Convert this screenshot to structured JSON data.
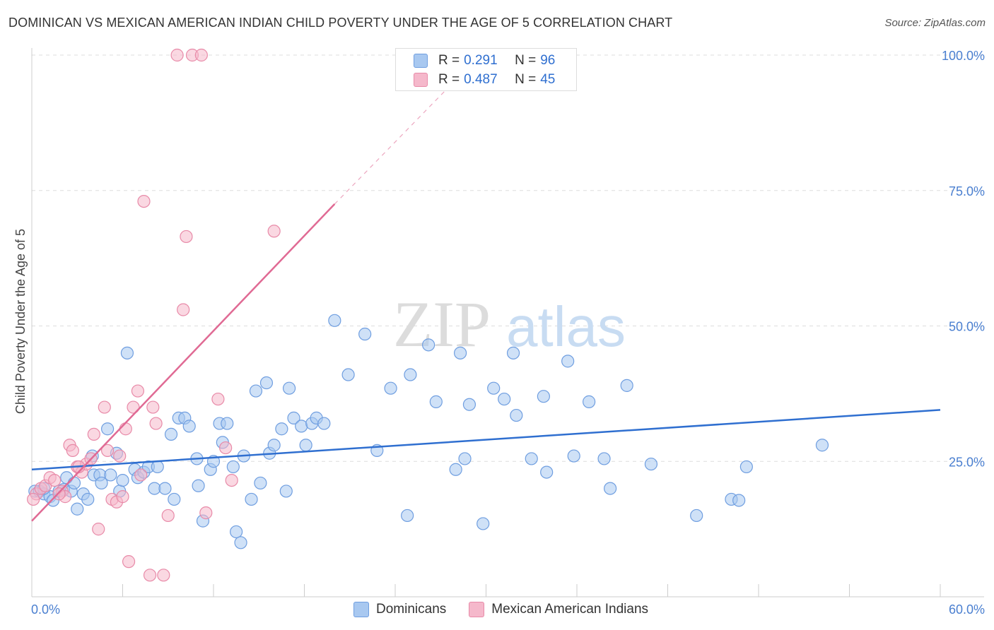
{
  "title": "DOMINICAN VS MEXICAN AMERICAN INDIAN CHILD POVERTY UNDER THE AGE OF 5 CORRELATION CHART",
  "source": "Source: ZipAtlas.com",
  "watermark": {
    "zip": "ZIP",
    "atlas": "atlas"
  },
  "colors": {
    "blue_fill": "#a8c8f0",
    "blue_stroke": "#6f9ee0",
    "blue_line": "#2f6fd0",
    "pink_fill": "#f5b8cb",
    "pink_stroke": "#e88aa8",
    "pink_line": "#e06a94",
    "grid": "#dddddd",
    "tick_text": "#4a7fd0"
  },
  "legend_top": [
    {
      "r_label": "R =",
      "r_value": "0.291",
      "n_label": "N =",
      "n_value": "96"
    },
    {
      "r_label": "R =",
      "r_value": "0.487",
      "n_label": "N =",
      "n_value": "45"
    }
  ],
  "legend_bottom": [
    "Dominicans",
    "Mexican American Indians"
  ],
  "chart_data": {
    "type": "scatter",
    "title": "DOMINICAN VS MEXICAN AMERICAN INDIAN CHILD POVERTY UNDER THE AGE OF 5 CORRELATION CHART",
    "xlabel": "",
    "ylabel": "Child Poverty Under the Age of 5",
    "xlim": [
      0,
      60
    ],
    "ylim": [
      0,
      100
    ],
    "x_tick_labels": [
      "0.0%",
      "60.0%"
    ],
    "y_tick_labels": [
      "25.0%",
      "50.0%",
      "75.0%",
      "100.0%"
    ],
    "y_ticks": [
      25,
      50,
      75,
      100
    ],
    "grid": true,
    "legend_position": "top-center",
    "series": [
      {
        "name": "Dominicans",
        "color": "#a8c8f0",
        "trendline": {
          "x": [
            0,
            60
          ],
          "y": [
            23.5,
            34.5
          ]
        },
        "points": [
          [
            0.2,
            19.5
          ],
          [
            0.5,
            19.5
          ],
          [
            0.8,
            19.0
          ],
          [
            1.2,
            18.5
          ],
          [
            1.4,
            17.8
          ],
          [
            1.8,
            19.5
          ],
          [
            2.1,
            19.8
          ],
          [
            2.3,
            22.0
          ],
          [
            2.6,
            19.5
          ],
          [
            2.8,
            21.0
          ],
          [
            3.0,
            16.2
          ],
          [
            3.4,
            19.0
          ],
          [
            3.7,
            18.0
          ],
          [
            4.0,
            26.0
          ],
          [
            4.1,
            22.5
          ],
          [
            4.5,
            22.5
          ],
          [
            4.6,
            21.0
          ],
          [
            5.0,
            31.0
          ],
          [
            5.2,
            22.5
          ],
          [
            5.6,
            26.5
          ],
          [
            5.8,
            19.5
          ],
          [
            6.0,
            21.5
          ],
          [
            6.3,
            45.0
          ],
          [
            6.8,
            23.5
          ],
          [
            7.0,
            22.0
          ],
          [
            7.4,
            23.0
          ],
          [
            7.7,
            24.0
          ],
          [
            8.1,
            20.0
          ],
          [
            8.3,
            24.0
          ],
          [
            8.8,
            20.0
          ],
          [
            9.2,
            30.0
          ],
          [
            9.4,
            18.0
          ],
          [
            9.7,
            33.0
          ],
          [
            10.1,
            33.0
          ],
          [
            10.4,
            31.5
          ],
          [
            10.9,
            25.5
          ],
          [
            11.0,
            20.5
          ],
          [
            11.3,
            14.0
          ],
          [
            11.8,
            23.5
          ],
          [
            12.0,
            25.0
          ],
          [
            12.4,
            32.0
          ],
          [
            12.6,
            28.5
          ],
          [
            12.9,
            32.0
          ],
          [
            13.3,
            24.0
          ],
          [
            13.5,
            12.0
          ],
          [
            13.8,
            10.0
          ],
          [
            14.0,
            26.0
          ],
          [
            14.5,
            18.0
          ],
          [
            14.8,
            38.0
          ],
          [
            15.1,
            21.0
          ],
          [
            15.5,
            39.5
          ],
          [
            15.7,
            26.5
          ],
          [
            16.0,
            28.0
          ],
          [
            16.5,
            31.0
          ],
          [
            16.8,
            19.5
          ],
          [
            17.0,
            38.5
          ],
          [
            17.3,
            33.0
          ],
          [
            17.8,
            31.5
          ],
          [
            18.1,
            28.0
          ],
          [
            18.5,
            32.0
          ],
          [
            18.8,
            33.0
          ],
          [
            19.3,
            32.0
          ],
          [
            20.0,
            51.0
          ],
          [
            20.9,
            41.0
          ],
          [
            22.0,
            48.5
          ],
          [
            22.8,
            27.0
          ],
          [
            23.7,
            38.5
          ],
          [
            24.8,
            15.0
          ],
          [
            25.0,
            41.0
          ],
          [
            26.2,
            46.5
          ],
          [
            26.7,
            36.0
          ],
          [
            28.0,
            23.5
          ],
          [
            28.3,
            45.0
          ],
          [
            28.6,
            25.5
          ],
          [
            28.9,
            35.5
          ],
          [
            29.8,
            13.5
          ],
          [
            30.5,
            38.5
          ],
          [
            31.2,
            36.5
          ],
          [
            31.8,
            45.0
          ],
          [
            32.0,
            33.5
          ],
          [
            33.0,
            25.5
          ],
          [
            33.8,
            37.0
          ],
          [
            34.0,
            23.0
          ],
          [
            35.4,
            43.5
          ],
          [
            35.8,
            26.0
          ],
          [
            36.8,
            36.0
          ],
          [
            37.8,
            25.5
          ],
          [
            38.2,
            20.0
          ],
          [
            39.3,
            39.0
          ],
          [
            40.9,
            24.5
          ],
          [
            43.9,
            15.0
          ],
          [
            46.2,
            18.0
          ],
          [
            46.7,
            17.8
          ],
          [
            47.2,
            24.0
          ],
          [
            52.2,
            28.0
          ],
          [
            0.8,
            20.0
          ]
        ]
      },
      {
        "name": "Mexican American Indians",
        "color": "#f5b8cb",
        "trendline": {
          "x": [
            0,
            20
          ],
          "y": [
            14.0,
            72.5
          ]
        },
        "trendline_extension": {
          "x": [
            20,
            27.5
          ],
          "y": [
            72.5,
            94.0
          ]
        },
        "points": [
          [
            0.3,
            19.0
          ],
          [
            0.6,
            20.0
          ],
          [
            0.9,
            20.5
          ],
          [
            1.2,
            22.0
          ],
          [
            1.5,
            21.5
          ],
          [
            2.0,
            19.5
          ],
          [
            2.2,
            18.5
          ],
          [
            2.5,
            28.0
          ],
          [
            2.7,
            27.0
          ],
          [
            3.0,
            24.0
          ],
          [
            3.3,
            23.0
          ],
          [
            3.6,
            24.5
          ],
          [
            3.9,
            25.5
          ],
          [
            4.1,
            30.0
          ],
          [
            4.4,
            12.5
          ],
          [
            4.8,
            35.0
          ],
          [
            5.0,
            27.0
          ],
          [
            5.3,
            18.0
          ],
          [
            5.6,
            17.5
          ],
          [
            5.8,
            26.0
          ],
          [
            6.0,
            18.5
          ],
          [
            6.2,
            31.0
          ],
          [
            6.4,
            6.5
          ],
          [
            6.7,
            35.0
          ],
          [
            7.0,
            38.0
          ],
          [
            7.2,
            22.5
          ],
          [
            7.4,
            73.0
          ],
          [
            7.8,
            4.0
          ],
          [
            8.0,
            35.0
          ],
          [
            8.2,
            32.0
          ],
          [
            8.7,
            4.0
          ],
          [
            9.0,
            15.0
          ],
          [
            9.6,
            100.0
          ],
          [
            10.0,
            53.0
          ],
          [
            10.2,
            66.5
          ],
          [
            10.6,
            100.0
          ],
          [
            11.2,
            100.0
          ],
          [
            11.5,
            15.5
          ],
          [
            12.3,
            36.5
          ],
          [
            12.8,
            27.5
          ],
          [
            13.2,
            21.5
          ],
          [
            16.0,
            67.5
          ],
          [
            3.1,
            24.0
          ],
          [
            0.1,
            18.0
          ],
          [
            1.8,
            19.0
          ]
        ]
      }
    ]
  }
}
